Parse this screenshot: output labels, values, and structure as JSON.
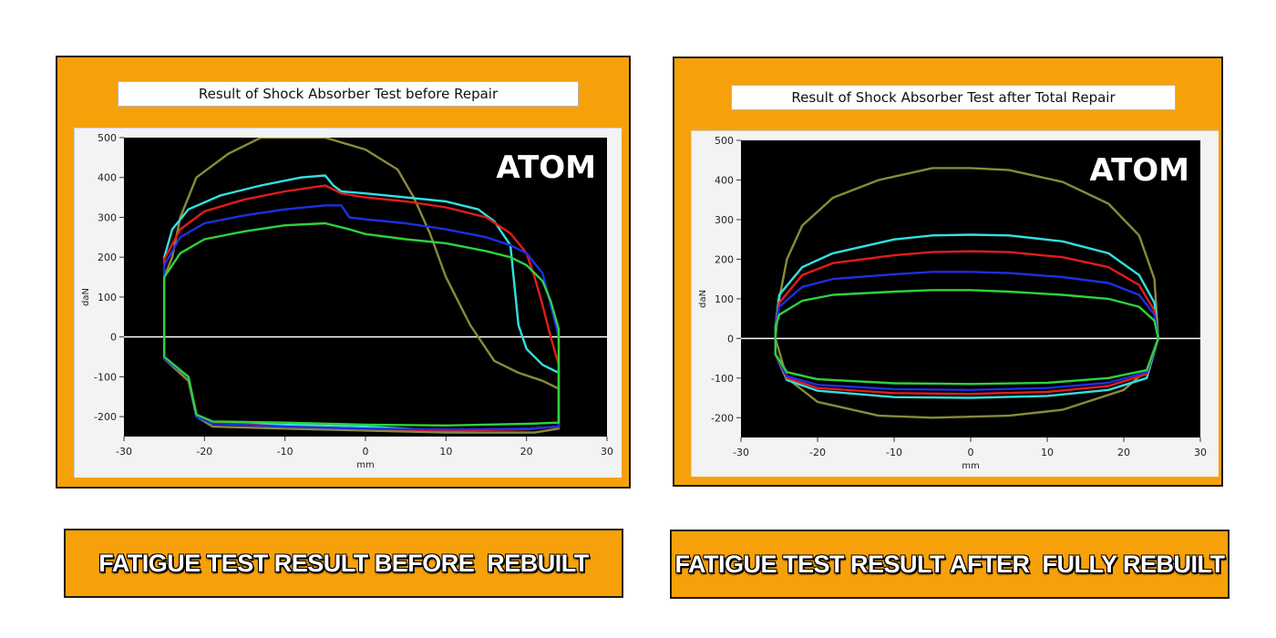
{
  "colors": {
    "panel_bg": "#f7a10a",
    "caption_bg": "#f7a10a",
    "plot_bg": "#000000",
    "zero_line": "#ffffff",
    "series": {
      "cyan": "#33e0e0",
      "red": "#e21c1c",
      "blue": "#1f2fe0",
      "green": "#2fd23c",
      "olive": "#8a8a3a"
    }
  },
  "logo_text": "ATOM",
  "captions": {
    "left": "FATIGUE TEST RESULT BEFORE  REBUILT",
    "right": "FATIGUE TEST RESULT AFTER  FULLY REBUILT"
  },
  "chart_data": [
    {
      "type": "line",
      "title": "Result of Shock Absorber Test before Repair",
      "xlabel": "mm",
      "ylabel": "daN",
      "xlim": [
        -30,
        30
      ],
      "ylim": [
        -250,
        500
      ],
      "xticks": [
        -30,
        -20,
        -10,
        0,
        10,
        20,
        30
      ],
      "yticks": [
        500,
        400,
        300,
        200,
        100,
        0,
        -100,
        -200
      ],
      "zero_line": true,
      "series": [
        {
          "color": "olive",
          "points": [
            [
              -25,
              150
            ],
            [
              -24,
              200
            ],
            [
              -23,
              300
            ],
            [
              -21,
              400
            ],
            [
              -17,
              460
            ],
            [
              -13,
              500
            ],
            [
              -5,
              500
            ],
            [
              0,
              470
            ],
            [
              4,
              420
            ],
            [
              6,
              350
            ],
            [
              8,
              260
            ],
            [
              10,
              150
            ],
            [
              13,
              30
            ],
            [
              16,
              -60
            ],
            [
              19,
              -90
            ],
            [
              22,
              -110
            ],
            [
              24,
              -130
            ],
            [
              24,
              -230
            ],
            [
              21,
              -240
            ],
            [
              10,
              -240
            ],
            [
              0,
              -235
            ],
            [
              -10,
              -230
            ],
            [
              -19,
              -225
            ],
            [
              -21,
              -200
            ],
            [
              -22,
              -110
            ],
            [
              -25,
              -55
            ],
            [
              -25,
              150
            ]
          ]
        },
        {
          "color": "cyan",
          "points": [
            [
              -25,
              200
            ],
            [
              -24,
              270
            ],
            [
              -22,
              320
            ],
            [
              -18,
              355
            ],
            [
              -13,
              380
            ],
            [
              -8,
              400
            ],
            [
              -5,
              405
            ],
            [
              -4,
              380
            ],
            [
              -3,
              365
            ],
            [
              0,
              360
            ],
            [
              5,
              350
            ],
            [
              10,
              340
            ],
            [
              14,
              320
            ],
            [
              16,
              290
            ],
            [
              18,
              230
            ],
            [
              18.5,
              130
            ],
            [
              19,
              30
            ],
            [
              20,
              -30
            ],
            [
              22,
              -70
            ],
            [
              24,
              -90
            ],
            [
              24,
              -225
            ],
            [
              20,
              -230
            ],
            [
              10,
              -235
            ],
            [
              0,
              -225
            ],
            [
              -10,
              -220
            ],
            [
              -19,
              -218
            ],
            [
              -21,
              -200
            ],
            [
              -22,
              -100
            ],
            [
              -25,
              -55
            ],
            [
              -25,
              200
            ]
          ]
        },
        {
          "color": "red",
          "points": [
            [
              -25,
              195
            ],
            [
              -23,
              270
            ],
            [
              -20,
              315
            ],
            [
              -15,
              345
            ],
            [
              -10,
              365
            ],
            [
              -5,
              380
            ],
            [
              -3,
              360
            ],
            [
              0,
              350
            ],
            [
              5,
              340
            ],
            [
              10,
              325
            ],
            [
              15,
              300
            ],
            [
              18,
              260
            ],
            [
              20,
              210
            ],
            [
              21,
              150
            ],
            [
              22,
              80
            ],
            [
              23,
              0
            ],
            [
              24,
              -70
            ],
            [
              24,
              -225
            ],
            [
              20,
              -232
            ],
            [
              10,
              -235
            ],
            [
              0,
              -230
            ],
            [
              -10,
              -225
            ],
            [
              -19,
              -215
            ],
            [
              -21,
              -195
            ],
            [
              -22,
              -100
            ],
            [
              -25,
              -55
            ],
            [
              -25,
              195
            ]
          ]
        },
        {
          "color": "blue",
          "points": [
            [
              -25,
              180
            ],
            [
              -23,
              250
            ],
            [
              -20,
              285
            ],
            [
              -15,
              305
            ],
            [
              -10,
              320
            ],
            [
              -5,
              330
            ],
            [
              -3,
              330
            ],
            [
              -2,
              300
            ],
            [
              0,
              295
            ],
            [
              5,
              285
            ],
            [
              10,
              270
            ],
            [
              15,
              250
            ],
            [
              18,
              230
            ],
            [
              20,
              210
            ],
            [
              22,
              160
            ],
            [
              23,
              80
            ],
            [
              24,
              0
            ],
            [
              24,
              -225
            ],
            [
              20,
              -230
            ],
            [
              10,
              -232
            ],
            [
              0,
              -230
            ],
            [
              -10,
              -225
            ],
            [
              -19,
              -218
            ],
            [
              -21,
              -200
            ],
            [
              -22,
              -100
            ],
            [
              -25,
              -55
            ],
            [
              -25,
              180
            ]
          ]
        },
        {
          "color": "green",
          "points": [
            [
              -25,
              150
            ],
            [
              -23,
              210
            ],
            [
              -20,
              245
            ],
            [
              -15,
              265
            ],
            [
              -10,
              280
            ],
            [
              -5,
              285
            ],
            [
              -2,
              270
            ],
            [
              0,
              258
            ],
            [
              5,
              245
            ],
            [
              10,
              235
            ],
            [
              15,
              215
            ],
            [
              18,
              200
            ],
            [
              20,
              180
            ],
            [
              22,
              140
            ],
            [
              23,
              90
            ],
            [
              24,
              20
            ],
            [
              24,
              -215
            ],
            [
              20,
              -218
            ],
            [
              10,
              -222
            ],
            [
              0,
              -220
            ],
            [
              -10,
              -215
            ],
            [
              -19,
              -212
            ],
            [
              -21,
              -195
            ],
            [
              -22,
              -100
            ],
            [
              -25,
              -50
            ],
            [
              -25,
              150
            ]
          ]
        }
      ]
    },
    {
      "type": "line",
      "title": "Result of Shock Absorber Test after Total Repair",
      "xlabel": "mm",
      "ylabel": "daN",
      "xlim": [
        -30,
        30
      ],
      "ylim": [
        -250,
        500
      ],
      "xticks": [
        -30,
        -20,
        -10,
        0,
        10,
        20,
        30
      ],
      "yticks": [
        500,
        400,
        300,
        200,
        100,
        0,
        -100,
        -200
      ],
      "zero_line": true,
      "series": [
        {
          "color": "olive",
          "points": [
            [
              -25.5,
              0
            ],
            [
              -25,
              100
            ],
            [
              -24,
              200
            ],
            [
              -22,
              285
            ],
            [
              -18,
              355
            ],
            [
              -12,
              400
            ],
            [
              -5,
              430
            ],
            [
              0,
              430
            ],
            [
              5,
              425
            ],
            [
              12,
              395
            ],
            [
              18,
              340
            ],
            [
              22,
              260
            ],
            [
              24,
              150
            ],
            [
              24.5,
              0
            ],
            [
              23,
              -80
            ],
            [
              20,
              -130
            ],
            [
              12,
              -180
            ],
            [
              5,
              -195
            ],
            [
              -5,
              -200
            ],
            [
              -12,
              -195
            ],
            [
              -20,
              -160
            ],
            [
              -24,
              -100
            ],
            [
              -25.5,
              0
            ]
          ]
        },
        {
          "color": "cyan",
          "points": [
            [
              -25.5,
              30
            ],
            [
              -25,
              110
            ],
            [
              -22,
              180
            ],
            [
              -18,
              215
            ],
            [
              -10,
              250
            ],
            [
              -5,
              260
            ],
            [
              0,
              262
            ],
            [
              5,
              260
            ],
            [
              12,
              245
            ],
            [
              18,
              215
            ],
            [
              22,
              160
            ],
            [
              24,
              90
            ],
            [
              24.5,
              0
            ],
            [
              23,
              -100
            ],
            [
              18,
              -130
            ],
            [
              10,
              -145
            ],
            [
              0,
              -150
            ],
            [
              -10,
              -148
            ],
            [
              -20,
              -132
            ],
            [
              -24,
              -105
            ],
            [
              -25.5,
              -40
            ],
            [
              -25.5,
              30
            ]
          ]
        },
        {
          "color": "red",
          "points": [
            [
              -25.5,
              30
            ],
            [
              -25,
              90
            ],
            [
              -22,
              160
            ],
            [
              -18,
              190
            ],
            [
              -10,
              210
            ],
            [
              -5,
              218
            ],
            [
              0,
              220
            ],
            [
              5,
              218
            ],
            [
              12,
              205
            ],
            [
              18,
              180
            ],
            [
              22,
              135
            ],
            [
              24,
              70
            ],
            [
              24.5,
              0
            ],
            [
              23,
              -90
            ],
            [
              18,
              -120
            ],
            [
              10,
              -135
            ],
            [
              0,
              -140
            ],
            [
              -10,
              -138
            ],
            [
              -20,
              -125
            ],
            [
              -24,
              -100
            ],
            [
              -25.5,
              -40
            ],
            [
              -25.5,
              30
            ]
          ]
        },
        {
          "color": "blue",
          "points": [
            [
              -25.5,
              30
            ],
            [
              -25,
              80
            ],
            [
              -22,
              130
            ],
            [
              -18,
              150
            ],
            [
              -10,
              162
            ],
            [
              -5,
              168
            ],
            [
              0,
              168
            ],
            [
              5,
              165
            ],
            [
              12,
              155
            ],
            [
              18,
              140
            ],
            [
              22,
              110
            ],
            [
              24,
              60
            ],
            [
              24.5,
              0
            ],
            [
              23,
              -85
            ],
            [
              18,
              -112
            ],
            [
              10,
              -125
            ],
            [
              0,
              -130
            ],
            [
              -10,
              -128
            ],
            [
              -20,
              -117
            ],
            [
              -24,
              -95
            ],
            [
              -25.5,
              -40
            ],
            [
              -25.5,
              30
            ]
          ]
        },
        {
          "color": "green",
          "points": [
            [
              -25.5,
              30
            ],
            [
              -25,
              60
            ],
            [
              -22,
              95
            ],
            [
              -18,
              110
            ],
            [
              -10,
              118
            ],
            [
              -5,
              122
            ],
            [
              0,
              122
            ],
            [
              5,
              118
            ],
            [
              12,
              110
            ],
            [
              18,
              100
            ],
            [
              22,
              80
            ],
            [
              24,
              45
            ],
            [
              24.5,
              0
            ],
            [
              23,
              -80
            ],
            [
              18,
              -100
            ],
            [
              10,
              -112
            ],
            [
              0,
              -115
            ],
            [
              -10,
              -113
            ],
            [
              -20,
              -103
            ],
            [
              -24,
              -85
            ],
            [
              -25.5,
              -40
            ],
            [
              -25.5,
              30
            ]
          ]
        }
      ]
    }
  ]
}
